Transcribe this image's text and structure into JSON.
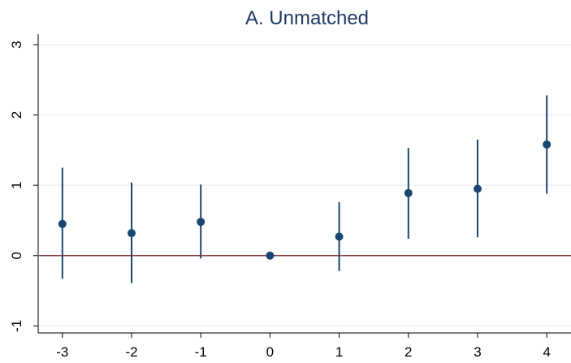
{
  "chart_data": {
    "type": "scatter",
    "title": "A. Unmatched",
    "xlabel": "",
    "ylabel": "",
    "xlim": [
      -3.35,
      4.35
    ],
    "ylim": [
      -1.1,
      3.15
    ],
    "x_ticks": [
      -3,
      -2,
      -1,
      0,
      1,
      2,
      3,
      4
    ],
    "x_tick_labels": [
      "-3",
      "-2",
      "-1",
      "0",
      "1",
      "2",
      "3",
      "4"
    ],
    "y_ticks": [
      -1,
      0,
      1,
      2,
      3
    ],
    "y_tick_labels": [
      "-1",
      "0",
      "1",
      "2",
      "3"
    ],
    "grid": true,
    "reference_line_y": 0,
    "series": [
      {
        "points": [
          {
            "x": -3,
            "y": 0.45,
            "ci_low": -0.33,
            "ci_high": 1.25
          },
          {
            "x": -2,
            "y": 0.32,
            "ci_low": -0.39,
            "ci_high": 1.04
          },
          {
            "x": -1,
            "y": 0.48,
            "ci_low": -0.04,
            "ci_high": 1.01
          },
          {
            "x": 0,
            "y": 0.0,
            "ci_low": 0.0,
            "ci_high": 0.0
          },
          {
            "x": 1,
            "y": 0.27,
            "ci_low": -0.22,
            "ci_high": 0.76
          },
          {
            "x": 2,
            "y": 0.89,
            "ci_low": 0.24,
            "ci_high": 1.53
          },
          {
            "x": 3,
            "y": 0.95,
            "ci_low": 0.26,
            "ci_high": 1.65
          },
          {
            "x": 4,
            "y": 1.58,
            "ci_low": 0.88,
            "ci_high": 2.28
          }
        ]
      }
    ],
    "colors": {
      "marker": "#1a476f",
      "ci": "#1a476f",
      "reference_line": "#90353b",
      "grid": "#e6e9ec",
      "title": "#1f3a64"
    }
  }
}
